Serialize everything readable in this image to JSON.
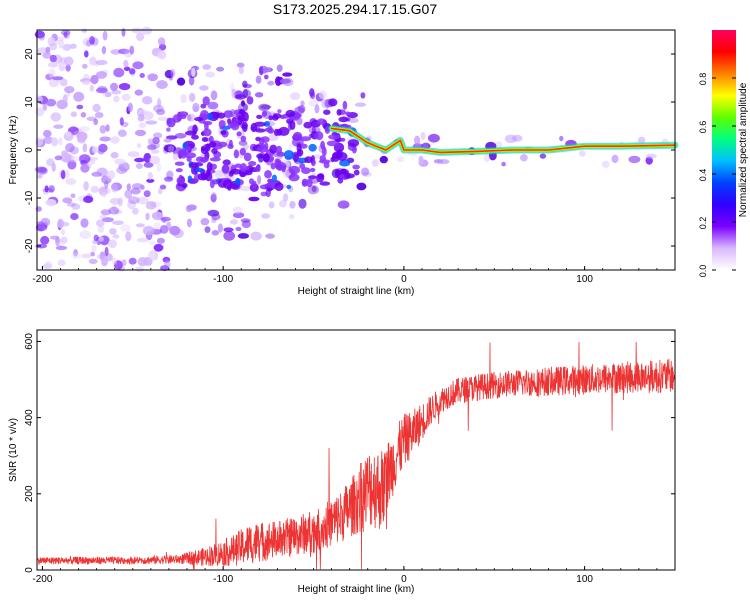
{
  "title": "S173.2025.294.17.15.G07",
  "chart_data": [
    {
      "type": "heatmap",
      "xlabel": "Height of straight line (km)",
      "ylabel": "Frequency (Hz)",
      "xlim": [
        -203,
        150
      ],
      "ylim": [
        -25,
        25
      ],
      "xticks": [
        -200,
        -100,
        0,
        100
      ],
      "yticks": [
        -20,
        -10,
        0,
        10,
        20
      ],
      "colorbar": {
        "label": "Normalized spectral amplitude",
        "range": [
          0,
          1
        ],
        "ticks": [
          0.0,
          0.2,
          0.4,
          0.6,
          0.8
        ],
        "tick_labels": [
          "0.0",
          "0.2",
          "0.4",
          "0.6",
          "0.8"
        ],
        "colors": [
          "#ffffff",
          "#d9b8ff",
          "#7a00ff",
          "#3000ff",
          "#0040ff",
          "#00c0ff",
          "#00ff80",
          "#60ff00",
          "#ffff00",
          "#ff8000",
          "#ff0000",
          "#ff0060"
        ]
      },
      "ridge": {
        "description_free_values": true,
        "points": [
          [
            -40,
            4.5
          ],
          [
            -30,
            4
          ],
          [
            -20,
            1.5
          ],
          [
            -10,
            0
          ],
          [
            -2,
            2
          ],
          [
            0,
            0
          ],
          [
            10,
            0
          ],
          [
            20,
            -0.5
          ],
          [
            40,
            -0.3
          ],
          [
            60,
            0
          ],
          [
            80,
            0
          ],
          [
            100,
            0.8
          ],
          [
            120,
            0.8
          ],
          [
            150,
            1
          ]
        ]
      }
    },
    {
      "type": "line",
      "xlabel": "Height of straight line (km)",
      "ylabel": "SNR (10 * v/v)",
      "xlim": [
        -203,
        150
      ],
      "ylim": [
        0,
        630
      ],
      "xticks": [
        -200,
        -100,
        0,
        100
      ],
      "yticks": [
        0,
        200,
        400,
        600
      ],
      "color": "#ee3333",
      "envelope_x": [
        -203,
        -150,
        -125,
        -110,
        -95,
        -85,
        -70,
        -55,
        -45,
        -35,
        -28,
        -22,
        -18,
        -12,
        -8,
        -4,
        0,
        5,
        10,
        15,
        20,
        25,
        30,
        40,
        60,
        80,
        100,
        120,
        150
      ],
      "envelope_y": [
        25,
        25,
        28,
        35,
        50,
        70,
        80,
        95,
        110,
        140,
        170,
        200,
        220,
        210,
        260,
        300,
        340,
        360,
        390,
        420,
        445,
        460,
        470,
        480,
        490,
        495,
        500,
        505,
        510
      ],
      "noise_amp": [
        10,
        10,
        12,
        25,
        40,
        55,
        50,
        55,
        60,
        70,
        80,
        100,
        110,
        110,
        90,
        80,
        70,
        60,
        50,
        40,
        35,
        35,
        35,
        35,
        35,
        38,
        40,
        42,
        45
      ]
    }
  ]
}
